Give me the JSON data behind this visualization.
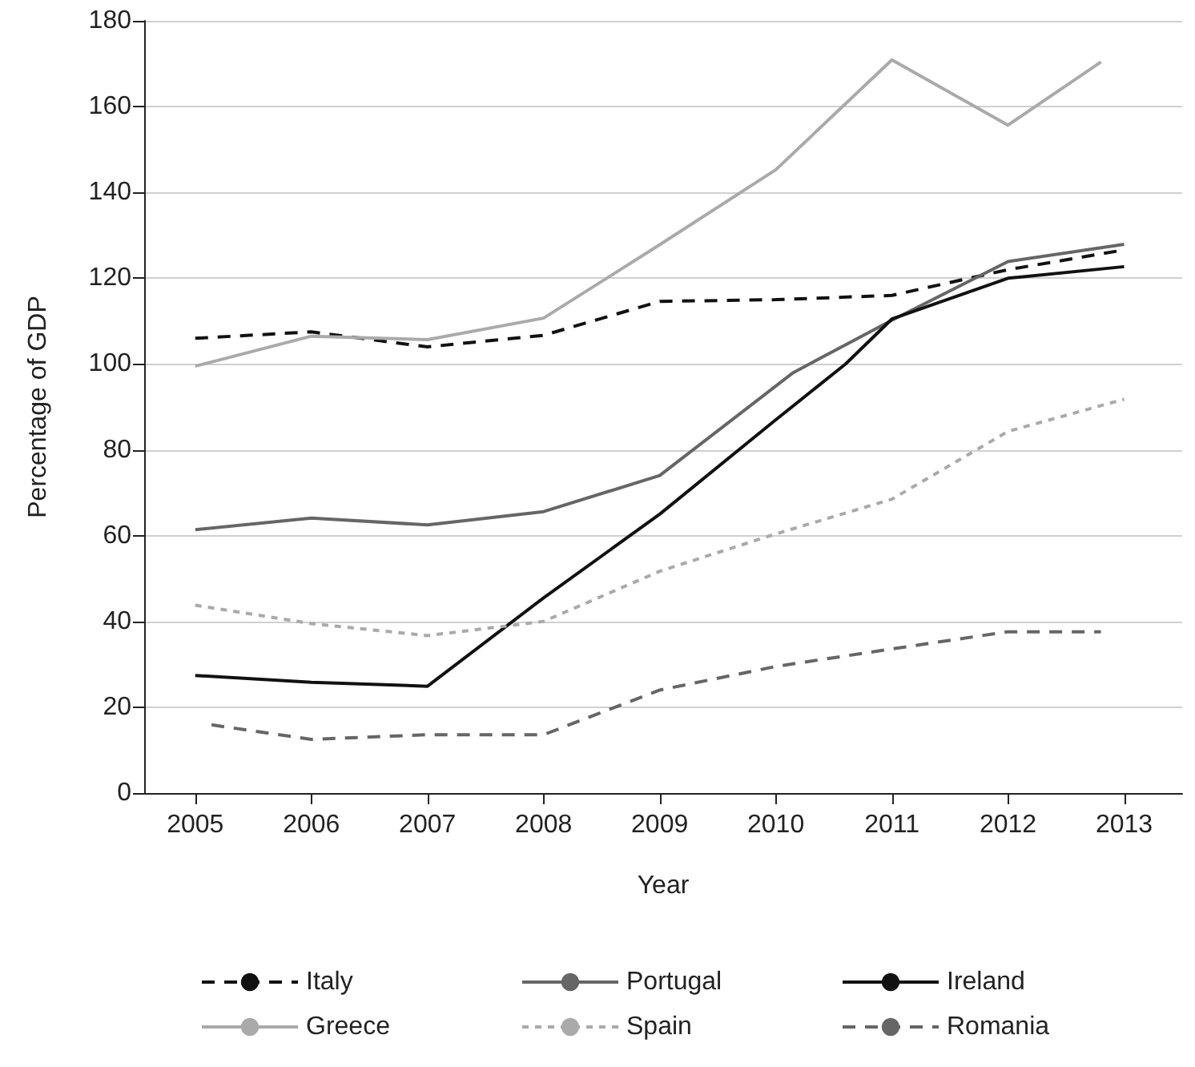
{
  "chart_data": {
    "type": "line",
    "xlabel": "Year",
    "ylabel": "Percentage of GDP",
    "xlim": [
      2004.56,
      2013.5
    ],
    "xticks": [
      2005,
      2006,
      2007,
      2008,
      2009,
      2010,
      2011,
      2012,
      2013
    ],
    "ylim": [
      0,
      180
    ],
    "yticks": [
      0,
      20,
      40,
      60,
      80,
      100,
      120,
      140,
      160,
      180
    ],
    "grid": "y",
    "legend": "bottom",
    "marker": "none",
    "series": [
      {
        "name": "Italy",
        "color": "#111111",
        "line_style": "dashed",
        "x": [
          2005,
          2006,
          2007,
          2008,
          2009,
          2010,
          2011,
          2012,
          2013
        ],
        "values": [
          106,
          107.5,
          104,
          106.7,
          114.6,
          115,
          116,
          122,
          126.6
        ]
      },
      {
        "name": "Portugal",
        "color": "#666666",
        "line_style": "solid",
        "x": [
          2005,
          2006,
          2007,
          2008,
          2009,
          2010.15,
          2011,
          2012,
          2013
        ],
        "values": [
          61.4,
          64.1,
          62.5,
          65.6,
          74,
          98,
          110.2,
          123.9,
          127.9
        ]
      },
      {
        "name": "Ireland",
        "color": "#111111",
        "line_style": "solid",
        "x": [
          2005,
          2006,
          2007,
          2008,
          2009,
          2010,
          2010.6,
          2011,
          2012,
          2013
        ],
        "values": [
          27.4,
          25.8,
          24.9,
          45.5,
          65,
          87,
          100,
          110.5,
          120,
          122.7
        ]
      },
      {
        "name": "Greece",
        "color": "#aaaaaa",
        "line_style": "solid",
        "x": [
          2005,
          2006,
          2007,
          2008,
          2009,
          2010,
          2011,
          2012,
          2012.8
        ],
        "values": [
          99.5,
          106.5,
          105.7,
          110.7,
          127.8,
          145.3,
          170.9,
          155.7,
          170.4
        ]
      },
      {
        "name": "Spain",
        "color": "#aaaaaa",
        "line_style": "dotted",
        "x": [
          2005,
          2006,
          2007,
          2008,
          2009,
          2010,
          2011,
          2012,
          2013
        ],
        "values": [
          43.8,
          39.5,
          36.7,
          40,
          51.7,
          60.4,
          68.5,
          84.3,
          91.8
        ]
      },
      {
        "name": "Romania",
        "color": "#666666",
        "line_style": "dashed",
        "x": [
          2005.14,
          2006,
          2007,
          2008,
          2009,
          2010,
          2011,
          2012,
          2012.8
        ],
        "values": [
          15.9,
          12.5,
          13.6,
          13.6,
          24,
          29.5,
          33.6,
          37.6,
          37.6
        ]
      }
    ]
  }
}
